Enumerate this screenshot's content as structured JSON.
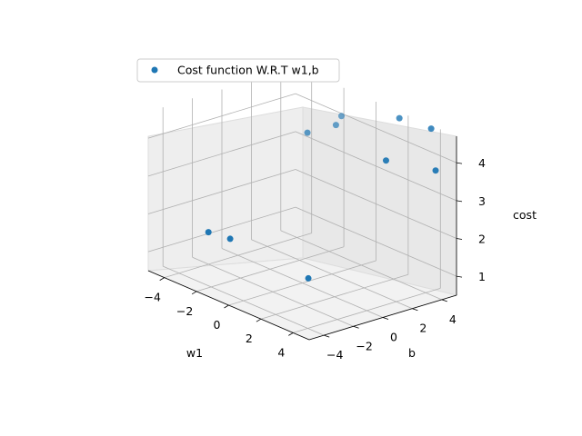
{
  "chart_data": {
    "type": "scatter",
    "projection": "3d",
    "legend": {
      "label": "Cost function W.R.T w1,b",
      "location": "upper-left"
    },
    "xlabel": "w1",
    "ylabel": "b",
    "zlabel": "cost",
    "xticks": [
      "−4",
      "−2",
      "0",
      "2",
      "4"
    ],
    "yticks": [
      "−4",
      "−2",
      "0",
      "2",
      "4"
    ],
    "zticks": [
      "1",
      "2",
      "3",
      "4"
    ],
    "xlim": [
      -5,
      5
    ],
    "ylim": [
      -5,
      5
    ],
    "zlim": [
      0.5,
      4.7
    ],
    "grid": true,
    "marker_color": "#1f77b4",
    "points": [
      {
        "w1": -1.9,
        "b": -4.3,
        "cost": 2.0
      },
      {
        "w1": -1.1,
        "b": -3.7,
        "cost": 1.9
      },
      {
        "w1": 3.3,
        "b": -3.2,
        "cost": 1.6
      },
      {
        "w1": -1.7,
        "b": 2.2,
        "cost": 3.9
      },
      {
        "w1": -1.3,
        "b": 3.7,
        "cost": 4.0
      },
      {
        "w1": -1.6,
        "b": 4.4,
        "cost": 4.1
      },
      {
        "w1": 3.0,
        "b": 2.4,
        "cost": 4.0
      },
      {
        "w1": 2.0,
        "b": 4.4,
        "cost": 4.7
      },
      {
        "w1": 3.7,
        "b": 4.7,
        "cost": 4.7
      },
      {
        "w1": 4.8,
        "b": 3.8,
        "cost": 3.9
      }
    ]
  }
}
